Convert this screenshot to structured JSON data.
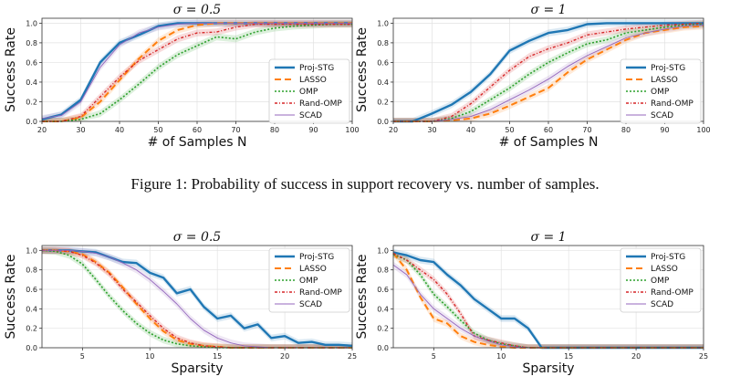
{
  "caption": "Figure 1:  Probability of success in support recovery vs. number of samples.",
  "chart_data": [
    {
      "type": "line",
      "title": "σ = 0.5",
      "xlabel": "# of Samples N",
      "ylabel": "Success Rate",
      "xlim": [
        20,
        100
      ],
      "ylim": [
        0,
        1.05
      ],
      "xticks": [
        20,
        30,
        40,
        50,
        60,
        70,
        80,
        90,
        100
      ],
      "yticks": [
        0.0,
        0.2,
        0.4,
        0.6,
        0.8,
        1.0
      ],
      "legend_position": "right",
      "grid": true,
      "x": [
        20,
        25,
        30,
        35,
        40,
        45,
        50,
        55,
        60,
        65,
        70,
        75,
        80,
        85,
        90,
        95,
        100
      ],
      "series": [
        {
          "name": "Proj-STG",
          "color": "#1f77b4",
          "dash": "",
          "width": 2.4,
          "values": [
            0.02,
            0.07,
            0.22,
            0.6,
            0.8,
            0.88,
            0.97,
            1.0,
            1.0,
            1.0,
            1.0,
            1.0,
            1.0,
            1.0,
            1.0,
            1.0,
            1.0
          ]
        },
        {
          "name": "LASSO",
          "color": "#ff7f0e",
          "dash": "7,4",
          "width": 2.0,
          "values": [
            0.0,
            0.0,
            0.04,
            0.2,
            0.42,
            0.64,
            0.82,
            0.93,
            0.98,
            1.0,
            1.0,
            1.0,
            1.0,
            1.0,
            1.0,
            1.0,
            1.0
          ]
        },
        {
          "name": "OMP",
          "color": "#2ca02c",
          "dash": "2,2",
          "width": 1.6,
          "values": [
            0.0,
            0.0,
            0.02,
            0.08,
            0.22,
            0.38,
            0.55,
            0.68,
            0.77,
            0.86,
            0.84,
            0.91,
            0.95,
            0.97,
            0.98,
            0.99,
            0.99
          ]
        },
        {
          "name": "Rand-OMP",
          "color": "#d62728",
          "dash": "3,2,1,2",
          "width": 1.4,
          "values": [
            0.0,
            0.0,
            0.05,
            0.25,
            0.45,
            0.62,
            0.73,
            0.84,
            0.9,
            0.91,
            0.96,
            0.99,
            0.99,
            0.99,
            0.99,
            0.99,
            0.99
          ]
        },
        {
          "name": "SCAD",
          "color": "#9467bd",
          "dash": "",
          "width": 0.9,
          "values": [
            0.03,
            0.06,
            0.2,
            0.55,
            0.78,
            0.9,
            0.96,
            0.99,
            1.0,
            1.0,
            1.0,
            1.0,
            1.0,
            1.0,
            1.0,
            1.0,
            1.0
          ]
        }
      ]
    },
    {
      "type": "line",
      "title": "σ = 1",
      "xlabel": "# of Samples N",
      "ylabel": "Success Rate",
      "xlim": [
        20,
        100
      ],
      "ylim": [
        0,
        1.05
      ],
      "xticks": [
        20,
        30,
        40,
        50,
        60,
        70,
        80,
        90,
        100
      ],
      "yticks": [
        0.0,
        0.2,
        0.4,
        0.6,
        0.8,
        1.0
      ],
      "legend_position": "right",
      "grid": true,
      "x": [
        20,
        25,
        30,
        35,
        40,
        45,
        50,
        55,
        60,
        65,
        70,
        75,
        80,
        85,
        90,
        95,
        100
      ],
      "series": [
        {
          "name": "Proj-STG",
          "color": "#1f77b4",
          "dash": "",
          "width": 2.4,
          "values": [
            0.0,
            0.0,
            0.08,
            0.17,
            0.3,
            0.48,
            0.72,
            0.82,
            0.9,
            0.93,
            0.99,
            1.0,
            1.0,
            1.0,
            1.0,
            1.0,
            1.0
          ]
        },
        {
          "name": "LASSO",
          "color": "#ff7f0e",
          "dash": "7,4",
          "width": 2.0,
          "values": [
            0.0,
            0.0,
            0.0,
            0.01,
            0.03,
            0.08,
            0.16,
            0.25,
            0.34,
            0.5,
            0.63,
            0.73,
            0.83,
            0.9,
            0.93,
            0.96,
            0.97
          ]
        },
        {
          "name": "OMP",
          "color": "#2ca02c",
          "dash": "2,2",
          "width": 1.6,
          "values": [
            0.0,
            0.0,
            0.0,
            0.03,
            0.1,
            0.22,
            0.34,
            0.48,
            0.6,
            0.7,
            0.79,
            0.83,
            0.9,
            0.93,
            0.96,
            0.98,
            0.99
          ]
        },
        {
          "name": "Rand-OMP",
          "color": "#d62728",
          "dash": "3,2,1,2",
          "width": 1.4,
          "values": [
            0.0,
            0.0,
            0.0,
            0.05,
            0.18,
            0.35,
            0.52,
            0.66,
            0.74,
            0.8,
            0.88,
            0.91,
            0.94,
            0.96,
            0.98,
            0.99,
            1.0
          ]
        },
        {
          "name": "SCAD",
          "color": "#9467bd",
          "dash": "",
          "width": 0.9,
          "values": [
            0.0,
            0.0,
            0.0,
            0.02,
            0.05,
            0.12,
            0.22,
            0.32,
            0.43,
            0.56,
            0.67,
            0.76,
            0.85,
            0.9,
            0.94,
            0.97,
            0.98
          ]
        }
      ]
    },
    {
      "type": "line",
      "title": "σ = 0.5",
      "xlabel": "Sparsity",
      "ylabel": "Success Rate",
      "xlim": [
        2,
        25
      ],
      "ylim": [
        0,
        1.05
      ],
      "xticks": [
        5,
        10,
        15,
        20,
        25
      ],
      "yticks": [
        0.0,
        0.2,
        0.4,
        0.6,
        0.8,
        1.0
      ],
      "legend_position": "top-right",
      "grid": true,
      "x": [
        2,
        3,
        4,
        5,
        6,
        7,
        8,
        9,
        10,
        11,
        12,
        13,
        14,
        15,
        16,
        17,
        18,
        19,
        20,
        21,
        22,
        23,
        24,
        25
      ],
      "series": [
        {
          "name": "Proj-STG",
          "color": "#1f77b4",
          "dash": "",
          "width": 2.4,
          "values": [
            1.0,
            1.0,
            1.0,
            0.99,
            0.98,
            0.93,
            0.88,
            0.87,
            0.77,
            0.72,
            0.56,
            0.6,
            0.42,
            0.3,
            0.33,
            0.2,
            0.24,
            0.1,
            0.12,
            0.05,
            0.06,
            0.03,
            0.03,
            0.02
          ]
        },
        {
          "name": "LASSO",
          "color": "#ff7f0e",
          "dash": "7,4",
          "width": 2.0,
          "values": [
            1.0,
            1.0,
            0.99,
            0.96,
            0.88,
            0.77,
            0.62,
            0.45,
            0.3,
            0.17,
            0.08,
            0.04,
            0.02,
            0.01,
            0.0,
            0.0,
            0.0,
            0.0,
            0.0,
            0.0,
            0.0,
            0.0,
            0.0,
            0.0
          ]
        },
        {
          "name": "OMP",
          "color": "#2ca02c",
          "dash": "2,2",
          "width": 1.6,
          "values": [
            1.0,
            0.99,
            0.95,
            0.86,
            0.7,
            0.53,
            0.38,
            0.25,
            0.15,
            0.08,
            0.04,
            0.02,
            0.01,
            0.0,
            0.0,
            0.0,
            0.0,
            0.0,
            0.0,
            0.0,
            0.0,
            0.0,
            0.0,
            0.0
          ]
        },
        {
          "name": "Rand-OMP",
          "color": "#d62728",
          "dash": "3,2,1,2",
          "width": 1.4,
          "values": [
            1.0,
            1.0,
            0.99,
            0.95,
            0.87,
            0.76,
            0.6,
            0.47,
            0.33,
            0.2,
            0.1,
            0.05,
            0.02,
            0.01,
            0.0,
            0.0,
            0.0,
            0.0,
            0.0,
            0.0,
            0.0,
            0.0,
            0.0,
            0.0
          ]
        },
        {
          "name": "SCAD",
          "color": "#9467bd",
          "dash": "",
          "width": 0.9,
          "values": [
            1.0,
            1.0,
            1.0,
            0.99,
            0.97,
            0.93,
            0.87,
            0.8,
            0.7,
            0.58,
            0.45,
            0.3,
            0.18,
            0.1,
            0.05,
            0.02,
            0.01,
            0.0,
            0.0,
            0.0,
            0.0,
            0.0,
            0.0,
            0.0
          ]
        }
      ]
    },
    {
      "type": "line",
      "title": "σ = 1",
      "xlabel": "Sparsity",
      "ylabel": "Success Rate",
      "xlim": [
        2,
        25
      ],
      "ylim": [
        0,
        1.05
      ],
      "xticks": [
        5,
        10,
        15,
        20,
        25
      ],
      "yticks": [
        0.0,
        0.2,
        0.4,
        0.6,
        0.8,
        1.0
      ],
      "legend_position": "top-right",
      "grid": true,
      "x": [
        2,
        3,
        4,
        5,
        6,
        7,
        8,
        9,
        10,
        11,
        12,
        13,
        14,
        15,
        16,
        17,
        18,
        19,
        20,
        21,
        22,
        23,
        24,
        25
      ],
      "series": [
        {
          "name": "Proj-STG",
          "color": "#1f77b4",
          "dash": "",
          "width": 2.4,
          "values": [
            0.98,
            0.95,
            0.9,
            0.88,
            0.75,
            0.64,
            0.5,
            0.4,
            0.3,
            0.3,
            0.2,
            0.0,
            0.0,
            0.0,
            0.0,
            0.0,
            0.0,
            0.0,
            0.0,
            0.0,
            0.0,
            0.0,
            0.0,
            0.0
          ]
        },
        {
          "name": "LASSO",
          "color": "#ff7f0e",
          "dash": "7,4",
          "width": 2.0,
          "values": [
            0.97,
            0.8,
            0.52,
            0.3,
            0.25,
            0.12,
            0.06,
            0.03,
            0.01,
            0.0,
            0.0,
            0.0,
            0.0,
            0.0,
            0.0,
            0.0,
            0.0,
            0.0,
            0.0,
            0.0,
            0.0,
            0.0,
            0.0,
            0.0
          ]
        },
        {
          "name": "OMP",
          "color": "#2ca02c",
          "dash": "2,2",
          "width": 1.6,
          "values": [
            0.96,
            0.9,
            0.75,
            0.55,
            0.42,
            0.28,
            0.15,
            0.08,
            0.04,
            0.02,
            0.0,
            0.0,
            0.0,
            0.0,
            0.0,
            0.0,
            0.0,
            0.0,
            0.0,
            0.0,
            0.0,
            0.0,
            0.0,
            0.0
          ]
        },
        {
          "name": "Rand-OMP",
          "color": "#d62728",
          "dash": "3,2,1,2",
          "width": 1.4,
          "values": [
            0.97,
            0.9,
            0.8,
            0.7,
            0.55,
            0.35,
            0.12,
            0.08,
            0.05,
            0.02,
            0.0,
            0.0,
            0.0,
            0.0,
            0.0,
            0.0,
            0.0,
            0.0,
            0.0,
            0.0,
            0.0,
            0.0,
            0.0,
            0.0
          ]
        },
        {
          "name": "SCAD",
          "color": "#9467bd",
          "dash": "",
          "width": 0.9,
          "values": [
            0.85,
            0.75,
            0.55,
            0.4,
            0.3,
            0.2,
            0.12,
            0.07,
            0.03,
            0.01,
            0.0,
            0.0,
            0.0,
            0.0,
            0.0,
            0.0,
            0.0,
            0.0,
            0.0,
            0.0,
            0.0,
            0.0,
            0.0,
            0.0
          ]
        }
      ]
    }
  ]
}
